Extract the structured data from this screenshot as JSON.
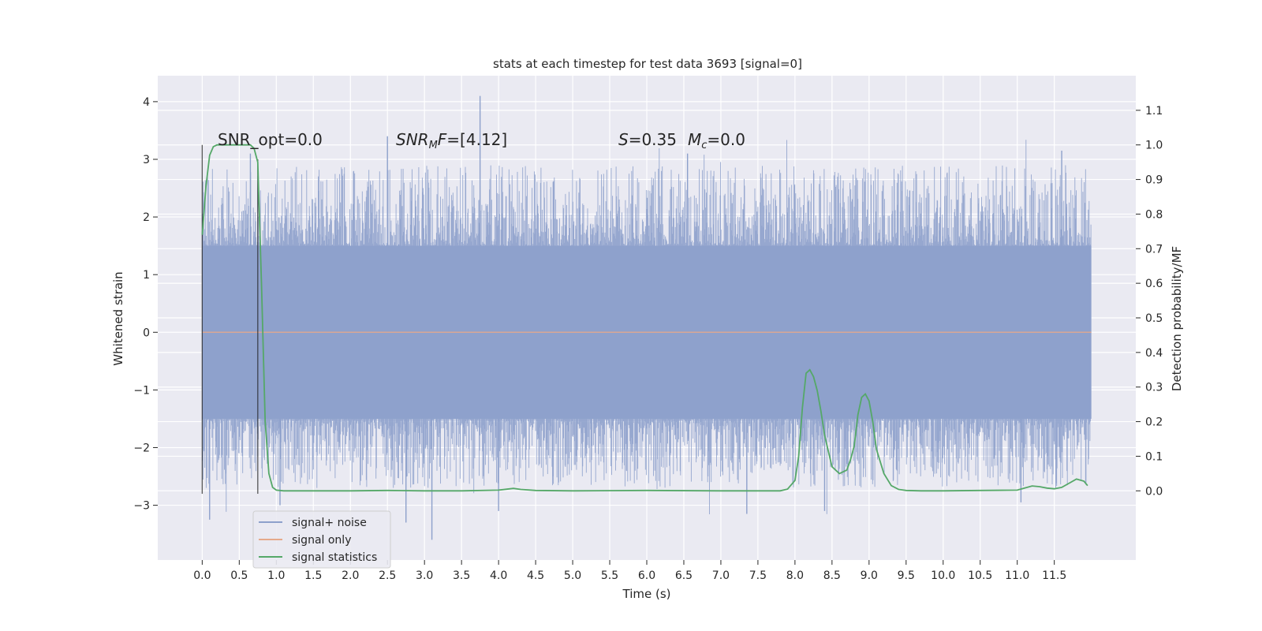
{
  "chart_data": {
    "type": "line",
    "title": "stats at each timestep for test data 3693 [signal=0]",
    "xlabel": "Time (s)",
    "ylabel": "Whitened strain",
    "ylabel_right": "Detection probability/MF",
    "xlim": [
      -0.6,
      12.6
    ],
    "ylim": [
      -3.95,
      4.45
    ],
    "ylim_right": [
      -0.2,
      1.2
    ],
    "x_ticks": [
      "0.0",
      "0.5",
      "1.0",
      "1.5",
      "2.0",
      "2.5",
      "3.0",
      "3.5",
      "4.0",
      "4.5",
      "5.0",
      "5.5",
      "6.0",
      "6.5",
      "7.0",
      "7.5",
      "8.0",
      "8.5",
      "9.0",
      "9.5",
      "10.0",
      "10.5",
      "11.0",
      "11.5"
    ],
    "y_ticks_left": [
      "−3",
      "−2",
      "−1",
      "0",
      "1",
      "2",
      "3",
      "4"
    ],
    "y_ticks_right": [
      "0.0",
      "0.1",
      "0.2",
      "0.3",
      "0.4",
      "0.5",
      "0.6",
      "0.7",
      "0.8",
      "0.9",
      "1.0",
      "1.1"
    ],
    "grid": true,
    "legend_placement": "lower-left",
    "annotations": {
      "snr_opt": "SNR_opt=0.0",
      "snr_mf_main": "SNR",
      "snr_mf_sub": "M",
      "snr_mf_rest": "F=[4.12]",
      "s_var": "S",
      "s_rest": "=0.35",
      "mc_var": "M",
      "mc_sub": "c",
      "mc_rest": "=0.0"
    },
    "markers": {
      "vlines_x": [
        0.0,
        0.75
      ],
      "vline_left_range": [
        -2.8,
        3.25
      ],
      "vline_right_range": [
        -2.8,
        3.0
      ]
    },
    "series": [
      {
        "name": "signal+ noise",
        "color": "#8da0cb",
        "band_envelope": {
          "x_range": [
            0.0,
            12.0
          ],
          "core_low": -1.5,
          "core_high": 1.5,
          "spike_high_max": 4.1,
          "spike_low_min": -3.6
        },
        "notable_spikes": [
          {
            "x": 0.1,
            "y": -3.25
          },
          {
            "x": 0.65,
            "y": 3.1
          },
          {
            "x": 1.05,
            "y": -3.0
          },
          {
            "x": 2.5,
            "y": 3.4
          },
          {
            "x": 2.75,
            "y": -3.3
          },
          {
            "x": 3.1,
            "y": -3.6
          },
          {
            "x": 3.75,
            "y": 4.1
          },
          {
            "x": 4.0,
            "y": -3.1
          },
          {
            "x": 6.55,
            "y": 3.1
          },
          {
            "x": 7.35,
            "y": -3.15
          },
          {
            "x": 8.4,
            "y": -3.1
          },
          {
            "x": 11.05,
            "y": -2.95
          },
          {
            "x": 11.6,
            "y": 3.15
          }
        ]
      },
      {
        "name": "signal only",
        "color": "#e5a98b",
        "x": [
          0.0,
          12.0
        ],
        "y": [
          0.0,
          0.0
        ]
      },
      {
        "name": "signal statistics",
        "color": "#55a868",
        "axis": "right",
        "x": [
          0.0,
          0.05,
          0.1,
          0.15,
          0.2,
          0.3,
          0.4,
          0.5,
          0.6,
          0.65,
          0.7,
          0.75,
          0.8,
          0.85,
          0.9,
          0.95,
          1.0,
          1.1,
          1.5,
          2.0,
          2.5,
          3.0,
          3.5,
          4.0,
          4.2,
          4.3,
          4.5,
          5.0,
          6.0,
          7.0,
          7.5,
          7.8,
          7.9,
          8.0,
          8.05,
          8.1,
          8.15,
          8.2,
          8.25,
          8.3,
          8.35,
          8.4,
          8.5,
          8.6,
          8.7,
          8.75,
          8.8,
          8.85,
          8.9,
          8.95,
          9.0,
          9.05,
          9.1,
          9.2,
          9.3,
          9.4,
          9.5,
          9.7,
          10.0,
          10.5,
          11.0,
          11.1,
          11.2,
          11.3,
          11.4,
          11.5,
          11.6,
          11.7,
          11.8,
          11.9,
          11.95
        ],
        "y": [
          0.74,
          0.88,
          0.97,
          0.995,
          1.0,
          1.0,
          1.0,
          1.0,
          1.0,
          1.0,
          0.99,
          0.95,
          0.6,
          0.2,
          0.05,
          0.01,
          0.002,
          0.0,
          0.0,
          0.0,
          0.001,
          0.0,
          0.0,
          0.002,
          0.007,
          0.004,
          0.001,
          0.0,
          0.001,
          0.0,
          0.0,
          0.0,
          0.005,
          0.03,
          0.1,
          0.24,
          0.34,
          0.35,
          0.33,
          0.29,
          0.23,
          0.16,
          0.07,
          0.05,
          0.06,
          0.09,
          0.13,
          0.22,
          0.27,
          0.28,
          0.26,
          0.2,
          0.12,
          0.05,
          0.015,
          0.004,
          0.001,
          0.0,
          0.0,
          0.001,
          0.002,
          0.008,
          0.014,
          0.012,
          0.008,
          0.006,
          0.01,
          0.022,
          0.034,
          0.028,
          0.015
        ]
      }
    ]
  }
}
